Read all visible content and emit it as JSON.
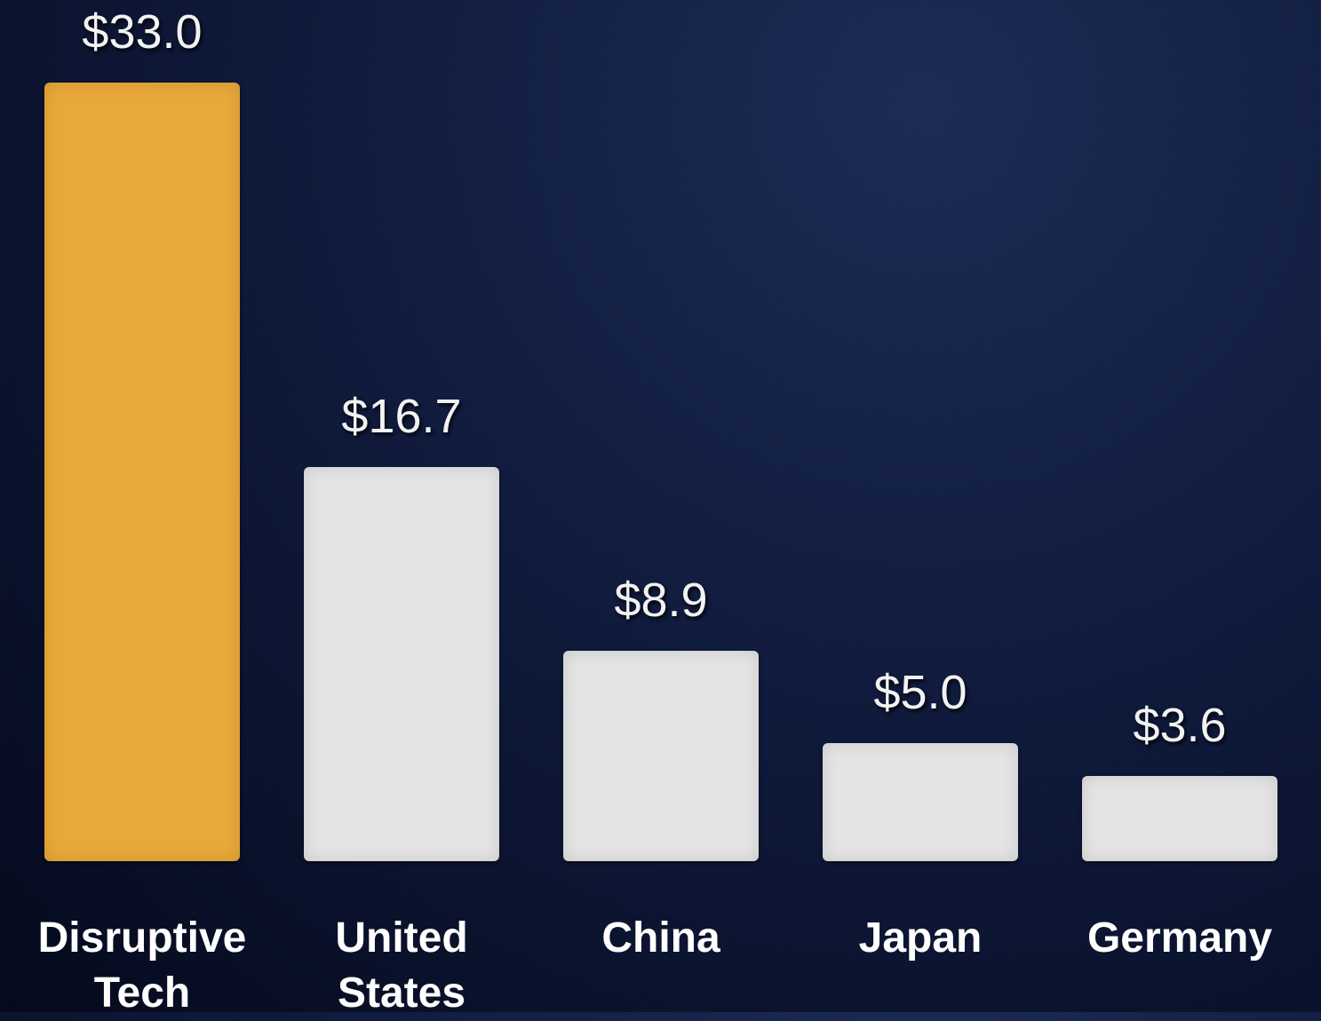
{
  "chart_data": {
    "type": "bar",
    "categories": [
      "Disruptive Tech",
      "United States",
      "China",
      "Japan",
      "Germany"
    ],
    "values": [
      33.0,
      16.7,
      8.9,
      5.0,
      3.6
    ],
    "value_labels": [
      "$33.0",
      "$16.7",
      "$8.9",
      "$5.0",
      "$3.6"
    ],
    "colors": [
      "#e9a83a",
      "#e4e4e4",
      "#e4e4e4",
      "#e4e4e4",
      "#e4e4e4"
    ]
  }
}
